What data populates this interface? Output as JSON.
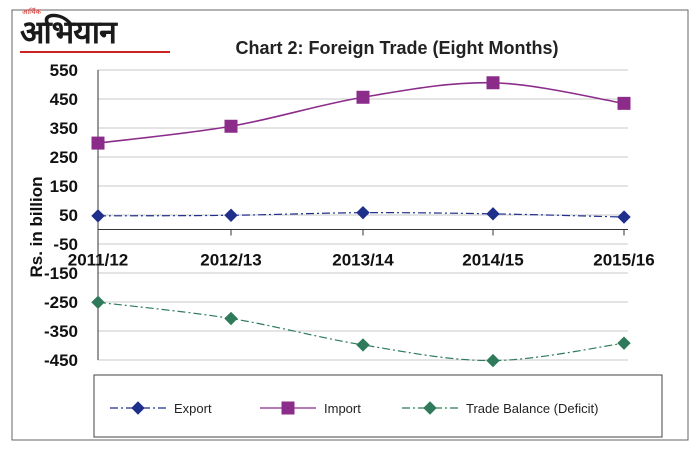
{
  "logo": {
    "text": "अभियान",
    "tagline": "आर्थिक"
  },
  "chart_data": {
    "type": "line",
    "title": "Chart 2: Foreign Trade (Eight Months)",
    "xlabel": "",
    "ylabel": "Rs. in billion",
    "categories": [
      "2011/12",
      "2012/13",
      "2013/14",
      "2014/15",
      "2015/16"
    ],
    "yticks": [
      550,
      450,
      350,
      250,
      150,
      50,
      -50,
      -150,
      -250,
      -350,
      -450
    ],
    "ylim": [
      -450,
      550
    ],
    "grid": true,
    "legend_position": "bottom",
    "series": [
      {
        "name": "Export",
        "values": [
          47,
          49,
          58,
          54,
          43
        ],
        "color": "#1f2f8c",
        "marker": "diamond",
        "dash": "dash-dot"
      },
      {
        "name": "Import",
        "values": [
          298,
          356,
          456,
          506,
          435
        ],
        "color": "#8b2c8b",
        "marker": "square",
        "dash": "solid"
      },
      {
        "name": "Trade Balance (Deficit)",
        "values": [
          -251,
          -307,
          -398,
          -452,
          -392
        ],
        "color": "#2f7a5a",
        "marker": "diamond",
        "dash": "dash-dot"
      }
    ]
  }
}
